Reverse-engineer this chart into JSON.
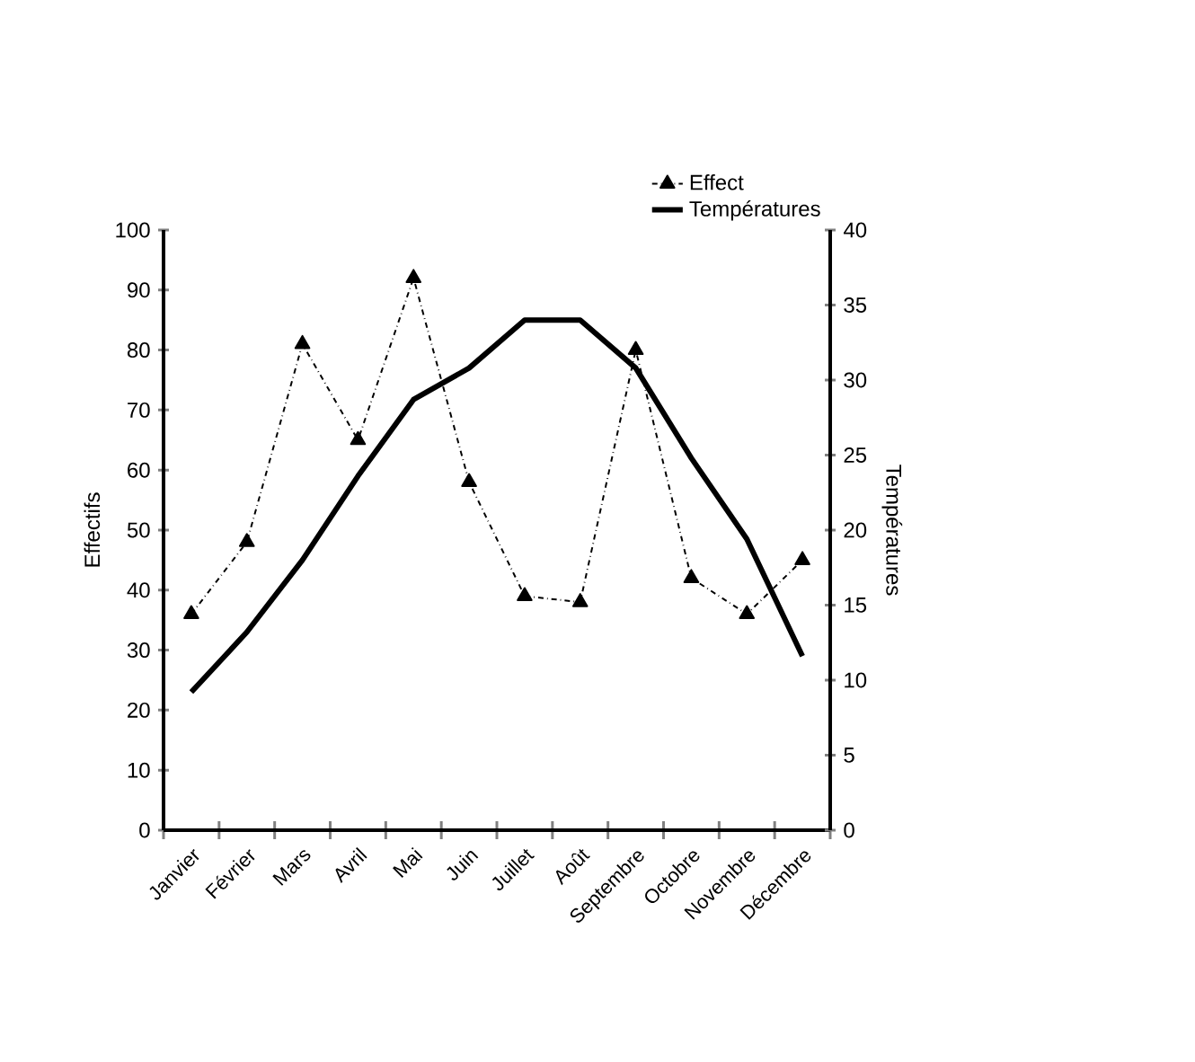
{
  "chart_data": {
    "type": "line",
    "categories": [
      "Janvier",
      "Février",
      "Mars",
      "Avril",
      "Mai",
      "Juin",
      "Juillet",
      "Août",
      "Septembre",
      "Octobre",
      "Novembre",
      "Décembre"
    ],
    "series": [
      {
        "name": "Effect",
        "color": "#000000",
        "marker": "triangle",
        "line_style": "dashed",
        "values": [
          36,
          48,
          81,
          65,
          92,
          58,
          39,
          38,
          80,
          42,
          36,
          45
        ]
      },
      {
        "name": "Températures",
        "color": "#000000",
        "marker": "none",
        "line_style": "solid",
        "axis": "y2",
        "values": [
          9.2,
          13.2,
          18,
          23.6,
          28.7,
          30.8,
          34,
          34,
          30.8,
          24.8,
          19.4,
          11.6
        ]
      }
    ],
    "ylabel": "Effectifs",
    "y2label": "Températures",
    "ylim": [
      0,
      100
    ],
    "yticks": [
      0,
      10,
      20,
      30,
      40,
      50,
      60,
      70,
      80,
      90,
      100
    ],
    "y2lim": [
      0,
      40
    ],
    "y2ticks": [
      0,
      5,
      10,
      15,
      20,
      25,
      30,
      35,
      40
    ],
    "legend": "top"
  }
}
